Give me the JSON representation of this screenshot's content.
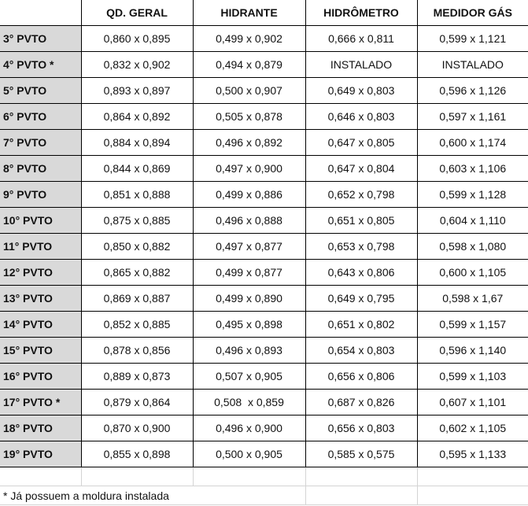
{
  "columns": [
    "QD. GERAL",
    "HIDRANTE",
    "HIDRÔMETRO",
    "MEDIDOR GÁS"
  ],
  "rows": [
    {
      "label": "3° PVTO",
      "cells": [
        "0,860 x 0,895",
        "0,499 x 0,902",
        "0,666 x 0,811",
        "0,599 x 1,121"
      ]
    },
    {
      "label": "4° PVTO *",
      "cells": [
        "0,832 x 0,902",
        "0,494 x 0,879",
        "INSTALADO",
        "INSTALADO"
      ]
    },
    {
      "label": "5° PVTO",
      "cells": [
        "0,893 x 0,897",
        "0,500 x 0,907",
        "0,649 x 0,803",
        "0,596 x 1,126"
      ]
    },
    {
      "label": "6° PVTO",
      "cells": [
        "0,864 x 0,892",
        "0,505 x 0,878",
        "0,646 x 0,803",
        "0,597 x 1,161"
      ]
    },
    {
      "label": "7° PVTO",
      "cells": [
        "0,884 x 0,894",
        "0,496 x 0,892",
        "0,647 x 0,805",
        "0,600 x 1,174"
      ]
    },
    {
      "label": "8° PVTO",
      "cells": [
        "0,844 x 0,869",
        "0,497 x 0,900",
        "0,647 x 0,804",
        "0,603 x 1,106"
      ]
    },
    {
      "label": "9° PVTO",
      "cells": [
        "0,851 x 0,888",
        "0,499 x 0,886",
        "0,652 x 0,798",
        "0,599 x 1,128"
      ]
    },
    {
      "label": "10° PVTO",
      "cells": [
        "0,875 x 0,885",
        "0,496 x 0,888",
        "0,651 x 0,805",
        "0,604 x 1,110"
      ]
    },
    {
      "label": "11° PVTO",
      "cells": [
        "0,850 x 0,882",
        "0,497 x 0,877",
        "0,653 x 0,798",
        "0,598 x 1,080"
      ]
    },
    {
      "label": "12° PVTO",
      "cells": [
        "0,865 x 0,882",
        "0,499 x 0,877",
        "0,643 x 0,806",
        "0,600 x 1,105"
      ]
    },
    {
      "label": "13° PVTO",
      "cells": [
        "0,869 x 0,887",
        "0,499 x 0,890",
        "0,649 x 0,795",
        "0,598 x 1,67"
      ]
    },
    {
      "label": "14° PVTO",
      "cells": [
        "0,852 x 0,885",
        "0,495 x 0,898",
        "0,651 x 0,802",
        "0,599 x 1,157"
      ]
    },
    {
      "label": "15° PVTO",
      "cells": [
        "0,878 x 0,856",
        "0,496 x 0,893",
        "0,654 x 0,803",
        "0,596 x 1,140"
      ]
    },
    {
      "label": "16° PVTO",
      "cells": [
        "0,889 x 0,873",
        "0,507 x 0,905",
        "0,656 x 0,806",
        "0,599 x 1,103"
      ]
    },
    {
      "label": "17° PVTO *",
      "cells": [
        "0,879 x 0,864",
        "0,508  x 0,859",
        "0,687 x 0,826",
        "0,607 x 1,101"
      ]
    },
    {
      "label": "18° PVTO",
      "cells": [
        "0,870 x 0,900",
        "0,496 x 0,900",
        "0,656 x 0,803",
        "0,602 x 1,105"
      ]
    },
    {
      "label": "19° PVTO",
      "cells": [
        "0,855 x 0,898",
        "0,500 x 0,905",
        "0,585 x 0,575",
        "0,595 x 1,133"
      ]
    }
  ],
  "footnote": "* Já possuem a moldura instalada",
  "colors": {
    "row_header_bg": "#d9d9d9",
    "grid": "#000000",
    "empty_grid": "#d4d4d4"
  }
}
